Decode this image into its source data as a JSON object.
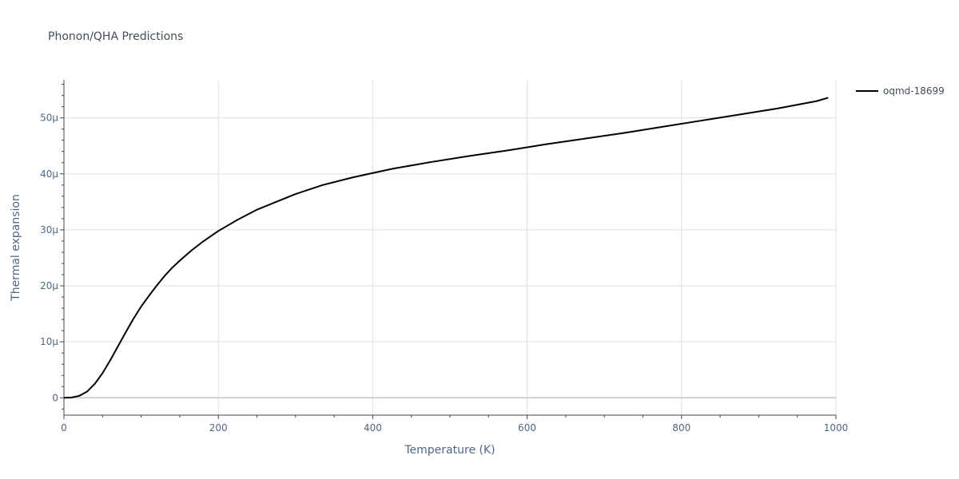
{
  "chart_data": {
    "type": "line",
    "title": "Phonon/QHA Predictions",
    "xlabel": "Temperature (K)",
    "ylabel": "Thermal expansion",
    "xlim": [
      0,
      1000
    ],
    "ylim": [
      -3.1,
      56.8
    ],
    "y_unit_scale": 1e-06,
    "x_ticks": [
      0,
      200,
      400,
      600,
      800,
      1000
    ],
    "x_tick_labels": [
      "0",
      "200",
      "400",
      "600",
      "800",
      "1000"
    ],
    "y_ticks": [
      0,
      10,
      20,
      30,
      40,
      50
    ],
    "y_tick_labels": [
      "0",
      "10μ",
      "20μ",
      "30μ",
      "40μ",
      "50μ"
    ],
    "grid": true,
    "legend_position": "top-right",
    "series": [
      {
        "name": "oqmd-18699",
        "color": "#000000",
        "x": [
          0,
          10,
          20,
          30,
          40,
          50,
          60,
          70,
          80,
          90,
          100,
          110,
          120,
          130,
          140,
          150,
          165,
          180,
          200,
          225,
          250,
          275,
          300,
          335,
          375,
          425,
          475,
          525,
          575,
          625,
          675,
          725,
          775,
          825,
          875,
          925,
          975,
          990
        ],
        "y": [
          0,
          0.05,
          0.35,
          1.1,
          2.5,
          4.4,
          6.7,
          9.2,
          11.7,
          14.1,
          16.3,
          18.2,
          20.0,
          21.7,
          23.2,
          24.5,
          26.3,
          27.9,
          29.8,
          31.8,
          33.6,
          35.0,
          36.4,
          38.0,
          39.4,
          40.9,
          42.1,
          43.2,
          44.2,
          45.3,
          46.3,
          47.3,
          48.4,
          49.5,
          50.6,
          51.7,
          53.0,
          53.6
        ]
      }
    ]
  }
}
